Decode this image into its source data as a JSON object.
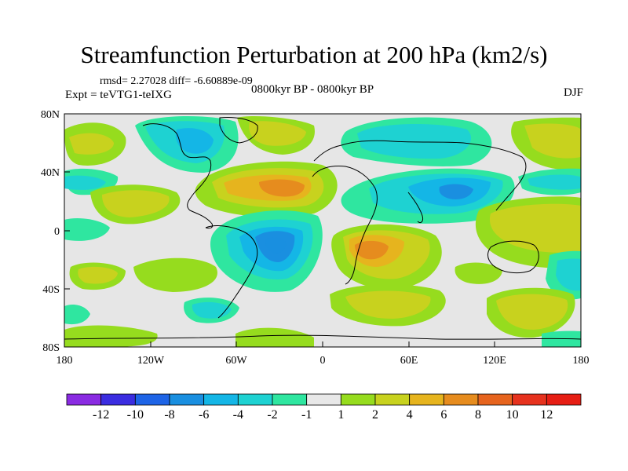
{
  "figure": {
    "title": "Streamfunction Perturbation at 200 hPa (km2/s)",
    "stats": "rmsd= 2.27028 diff= -6.60889e-09",
    "experiment": "Expt = teVTG1-teIXG",
    "period": "0800kyr BP - 0800kyr BP",
    "season": "DJF"
  },
  "axes": {
    "lat_labels": [
      "80N",
      "40N",
      "0",
      "40S",
      "80S"
    ],
    "lon_labels": [
      "180",
      "120W",
      "60W",
      "0",
      "60E",
      "120E",
      "180"
    ]
  },
  "colorbar": {
    "labels": [
      "-12",
      "-10",
      "-8",
      "-6",
      "-4",
      "-2",
      "-1",
      "1",
      "2",
      "4",
      "6",
      "8",
      "10",
      "12"
    ],
    "colors": [
      "#8a2be2",
      "#3b2de0",
      "#1e64e6",
      "#1a8fe0",
      "#14b6e6",
      "#1ed2d2",
      "#2fe6a0",
      "#e8e8e8",
      "#96dc1e",
      "#c8d21e",
      "#e6b41e",
      "#e68c1e",
      "#e6641e",
      "#e6321e",
      "#e61e14"
    ]
  },
  "field_colors": {
    "neutral": "#e6e6e6",
    "pos1": "#96dc1e",
    "pos2": "#c8d21e",
    "pos3": "#e6b41e",
    "pos4": "#e68c1e",
    "neg1": "#2fe6a0",
    "neg2": "#1ed2d2",
    "neg3": "#14b6e6",
    "neg4": "#1a8fe0",
    "coast": "#000000"
  }
}
